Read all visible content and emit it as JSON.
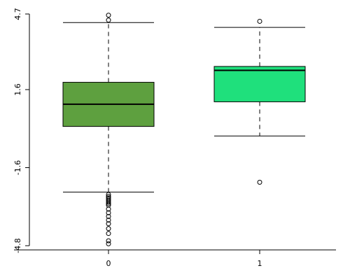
{
  "chart_data": {
    "type": "box",
    "title": "",
    "xlabel": "",
    "ylabel": "",
    "ylim": [
      -4.8,
      4.7
    ],
    "yticks": [
      -4.8,
      -1.6,
      1.6,
      4.7
    ],
    "ytick_labels": [
      "-4.8",
      "-1.6",
      "1.6",
      "4.7"
    ],
    "categories": [
      "0",
      "1"
    ],
    "grid": false,
    "boxes": [
      {
        "category": "0",
        "color": "#5ea03f",
        "whisker_low": -2.6,
        "q1": 0.09,
        "median": 1.0,
        "q3": 1.9,
        "whisker_high": 4.35,
        "outliers_high": [
          4.45,
          4.65
        ],
        "outliers_low": [
          -2.7,
          -2.78,
          -2.84,
          -2.9,
          -2.96,
          -3.02,
          -3.08,
          -3.14,
          -3.3,
          -3.45,
          -3.6,
          -3.75,
          -3.9,
          -4.1,
          -4.3,
          -4.6,
          -4.72
        ]
      },
      {
        "category": "1",
        "color": "#1fe07c",
        "whisker_low": -0.3,
        "q1": 1.1,
        "median": 2.39,
        "q3": 2.55,
        "whisker_high": 4.15,
        "outliers_high": [
          4.4
        ],
        "outliers_low": [
          -2.2
        ]
      }
    ]
  }
}
